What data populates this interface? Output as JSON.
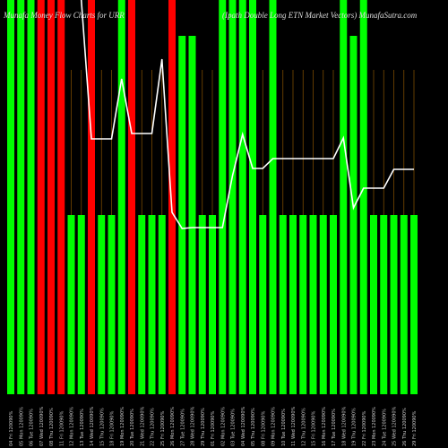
{
  "chart_data": {
    "type": "bar",
    "title": "Munafa Money Flow Charts for URR",
    "subtitle": "(Ipath Double Long ETN Market Vectors) MunafaSutra.com",
    "categories": [
      "04 Fri 120090%",
      "05 Mon 120090%",
      "06 Tue 120090%",
      "07 Wed 120090%",
      "08 Thu 120090%",
      "11 Fri 120090%",
      "12 Mon 120090%",
      "13 Tue 120090%",
      "14 Wed 120090%",
      "15 Thu 120090%",
      "18 Fri 120090%",
      "19 Mon 120090%",
      "20 Tue 120090%",
      "21 Wed 120090%",
      "22 Thu 120090%",
      "25 Fri 120090%",
      "26 Mon 120090%",
      "27 Tue 120090%",
      "28 Wed 120090%",
      "29 Thu 120090%",
      "01 Fri 120090%",
      "02 Mon 120090%",
      "03 Tue 120090%",
      "04 Wed 120090%",
      "05 Thu 120090%",
      "08 Fri 120090%",
      "09 Mon 120090%",
      "10 Tue 120090%",
      "11 Wed 120090%",
      "12 Thu 120090%",
      "15 Fri 120090%",
      "16 Mon 120090%",
      "17 Tue 120090%",
      "18 Wed 120090%",
      "19 Thu 120090%",
      "22 Fri 120090%",
      "23 Mon 120090%",
      "24 Tue 120090%",
      "25 Wed 120090%",
      "26 Thu 120090%",
      "29 Fri 120090%"
    ],
    "values": [
      440,
      440,
      440,
      440,
      440,
      440,
      200,
      200,
      440,
      200,
      200,
      440,
      440,
      200,
      200,
      200,
      440,
      400,
      400,
      200,
      200,
      440,
      440,
      440,
      440,
      200,
      440,
      200,
      200,
      200,
      200,
      200,
      200,
      440,
      400,
      440,
      200,
      200,
      200,
      200,
      200
    ],
    "colors": [
      "#00ff00",
      "#00ff00",
      "#00ff00",
      "#ff0000",
      "#ff0000",
      "#ff0000",
      "#00ff00",
      "#00ff00",
      "#ff0000",
      "#00ff00",
      "#00ff00",
      "#00ff00",
      "#ff0000",
      "#00ff00",
      "#00ff00",
      "#00ff00",
      "#ff0000",
      "#00ff00",
      "#00ff00",
      "#00ff00",
      "#00ff00",
      "#00ff00",
      "#00ff00",
      "#00ff00",
      "#00ff00",
      "#00ff00",
      "#00ff00",
      "#00ff00",
      "#00ff00",
      "#00ff00",
      "#00ff00",
      "#00ff00",
      "#00ff00",
      "#00ff00",
      "#00ff00",
      "#00ff00",
      "#00ff00",
      "#00ff00",
      "#00ff00",
      "#00ff00",
      "#00ff00"
    ],
    "line": {
      "color": "#ffffff",
      "values": [
        null,
        null,
        null,
        null,
        null,
        null,
        null,
        440,
        285,
        285,
        285,
        352,
        291,
        291,
        291,
        374,
        203,
        185,
        186,
        186,
        186,
        186,
        244,
        290,
        252,
        252,
        263,
        263,
        263,
        263,
        263,
        263,
        263,
        286,
        208,
        230,
        230,
        230,
        251,
        251,
        251
      ]
    }
  }
}
